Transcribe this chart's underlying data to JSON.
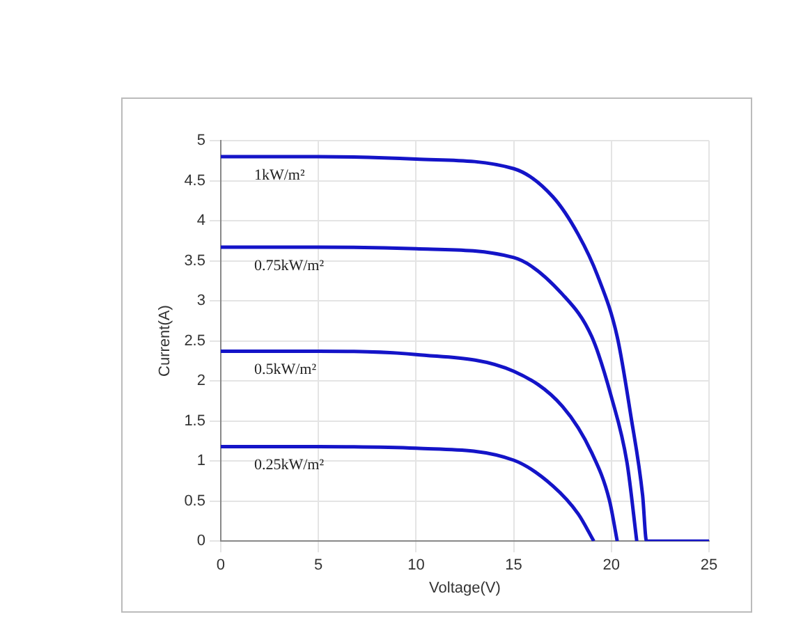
{
  "chart_data": {
    "type": "line",
    "xlabel": "Voltage(V)",
    "ylabel": "Current(A)",
    "xlim": [
      0,
      25
    ],
    "ylim": [
      0,
      5
    ],
    "xticks": [
      0,
      5,
      10,
      15,
      20,
      25
    ],
    "yticks": [
      0,
      0.5,
      1,
      1.5,
      2,
      2.5,
      3,
      3.5,
      4,
      4.5,
      5
    ],
    "grid": true,
    "legend": false,
    "marker": "none",
    "line_style": "solid",
    "series": [
      {
        "name": "1kW/m²",
        "color": "#1414c8",
        "x": [
          0,
          5,
          10,
          15,
          17,
          18.3,
          19.3,
          20.3,
          21,
          21.6,
          21.8,
          25
        ],
        "values": [
          4.8,
          4.8,
          4.77,
          4.65,
          4.3,
          3.83,
          3.31,
          2.55,
          1.56,
          0.57,
          0,
          0
        ]
      },
      {
        "name": "0.75kW/m²",
        "color": "#1414c8",
        "x": [
          0,
          5,
          10,
          15,
          17.5,
          19,
          20,
          20.8,
          21.3
        ],
        "values": [
          3.67,
          3.67,
          3.65,
          3.54,
          3.08,
          2.55,
          1.8,
          0.98,
          0
        ]
      },
      {
        "name": "0.5kW/m²",
        "color": "#1414c8",
        "x": [
          0,
          5,
          10,
          15,
          17.5,
          19,
          19.9,
          20.3
        ],
        "values": [
          2.37,
          2.37,
          2.33,
          2.12,
          1.68,
          1.1,
          0.51,
          0
        ]
      },
      {
        "name": "0.25kW/m²",
        "color": "#1414c8",
        "x": [
          0,
          5,
          10,
          15,
          17,
          18.3,
          19.1
        ],
        "values": [
          1.18,
          1.18,
          1.16,
          1.01,
          0.69,
          0.34,
          0
        ]
      }
    ]
  }
}
